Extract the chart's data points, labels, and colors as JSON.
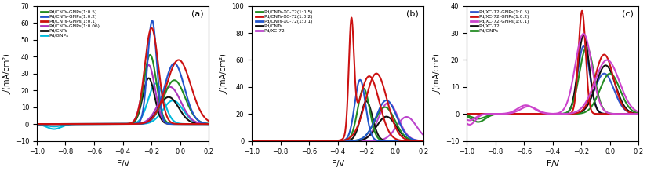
{
  "panel_a": {
    "title": "(a)",
    "xlabel": "E/V",
    "ylabel": "J/(mA/cm²)",
    "xlim": [
      -1.0,
      0.2
    ],
    "ylim": [
      -10,
      70
    ],
    "yticks": [
      -10,
      0,
      10,
      20,
      30,
      40,
      50,
      60,
      70
    ],
    "xticks": [
      -1.0,
      -0.8,
      -0.6,
      -0.4,
      -0.2,
      0.0,
      0.2
    ],
    "legend": [
      {
        "label": "Pd/CNTs-GNPs(1:0.5)",
        "color": "#228B22"
      },
      {
        "label": "Pd/CNTs-GNPs(1:0.2)",
        "color": "#2255CC"
      },
      {
        "label": "Pd/CNTs-GNPs(1:0.1)",
        "color": "#CC1111"
      },
      {
        "label": "Pd/CNTs-GNPs(1:0.06)",
        "color": "#AA33BB"
      },
      {
        "label": "Pd/CNTs",
        "color": "#111111"
      },
      {
        "label": "Pd/GNPs",
        "color": "#00BBDD"
      }
    ]
  },
  "panel_b": {
    "title": "(b)",
    "xlabel": "E/V",
    "ylabel": "J/(mA/cm²)",
    "xlim": [
      -1.0,
      0.2
    ],
    "ylim": [
      0,
      100
    ],
    "yticks": [
      0,
      20,
      40,
      60,
      80,
      100
    ],
    "xticks": [
      -1.0,
      -0.8,
      -0.6,
      -0.4,
      -0.2,
      0.0,
      0.2
    ],
    "legend": [
      {
        "label": "Pd/CNTs-XC-72(1:0.5)",
        "color": "#228B22"
      },
      {
        "label": "Pd/CNTs-XC-72(1:0.2)",
        "color": "#CC1111"
      },
      {
        "label": "Pd/CNTs-XC-72(1:0.1)",
        "color": "#2255CC"
      },
      {
        "label": "Pd/CNTs",
        "color": "#111111"
      },
      {
        "label": "Pd/XC-72",
        "color": "#BB44CC"
      }
    ]
  },
  "panel_c": {
    "title": "(c)",
    "xlabel": "E/V",
    "ylabel": "J/(mA/cm²)",
    "xlim": [
      -1.0,
      0.2
    ],
    "ylim": [
      -10,
      40
    ],
    "yticks": [
      -10,
      0,
      10,
      20,
      30,
      40
    ],
    "xticks": [
      -1.0,
      -0.8,
      -0.6,
      -0.4,
      -0.2,
      0.0,
      0.2
    ],
    "legend": [
      {
        "label": "Pd/XC-72-GNPs(1:0.5)",
        "color": "#3355CC"
      },
      {
        "label": "Pd/XC-72-GNPs(1:0.2)",
        "color": "#CC1111"
      },
      {
        "label": "Pd/XC-72-GNPs(1:0.1)",
        "color": "#CC44CC"
      },
      {
        "label": "Pd/XC-72",
        "color": "#111111"
      },
      {
        "label": "Pd/GNPs",
        "color": "#228B22"
      }
    ]
  }
}
